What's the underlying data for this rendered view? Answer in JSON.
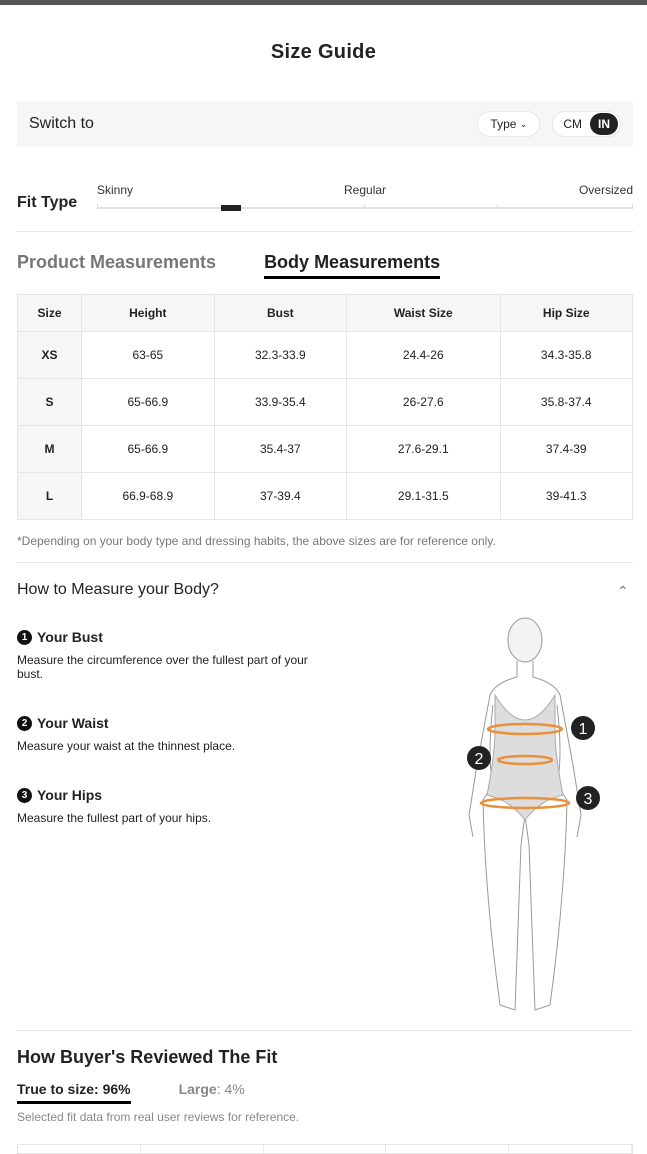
{
  "title": "Size Guide",
  "switch": {
    "label": "Switch to",
    "type_label": "Type",
    "units": [
      "CM",
      "IN"
    ],
    "selected_unit": "IN"
  },
  "fit": {
    "label": "Fit Type",
    "scale": [
      "Skinny",
      "Regular",
      "Oversized"
    ],
    "position_percent": 25
  },
  "tabs": [
    "Product Measurements",
    "Body Measurements"
  ],
  "active_tab": "Body Measurements",
  "table": {
    "headers": [
      "Size",
      "Height",
      "Bust",
      "Waist Size",
      "Hip Size"
    ],
    "rows": [
      [
        "XS",
        "63-65",
        "32.3-33.9",
        "24.4-26",
        "34.3-35.8"
      ],
      [
        "S",
        "65-66.9",
        "33.9-35.4",
        "26-27.6",
        "35.8-37.4"
      ],
      [
        "M",
        "65-66.9",
        "35.4-37",
        "27.6-29.1",
        "37.4-39"
      ],
      [
        "L",
        "66.9-68.9",
        "37-39.4",
        "29.1-31.5",
        "39-41.3"
      ]
    ]
  },
  "note": "*Depending on your body type and dressing habits, the above sizes are for reference only.",
  "how": {
    "title": "How to Measure your Body?",
    "steps": [
      {
        "num": "1",
        "title": "Your Bust",
        "text": "Measure the circumference over the fullest part of your bust."
      },
      {
        "num": "2",
        "title": "Your Waist",
        "text": "Measure your waist at the thinnest place."
      },
      {
        "num": "3",
        "title": "Your Hips",
        "text": "Measure the fullest part of your hips."
      }
    ]
  },
  "review": {
    "title": "How Buyer's Reviewed The Fit",
    "true_label": "True to size: 96%",
    "large_label": "Large",
    "large_value": ": 4%",
    "note": "Selected fit data from real user reviews for reference."
  }
}
